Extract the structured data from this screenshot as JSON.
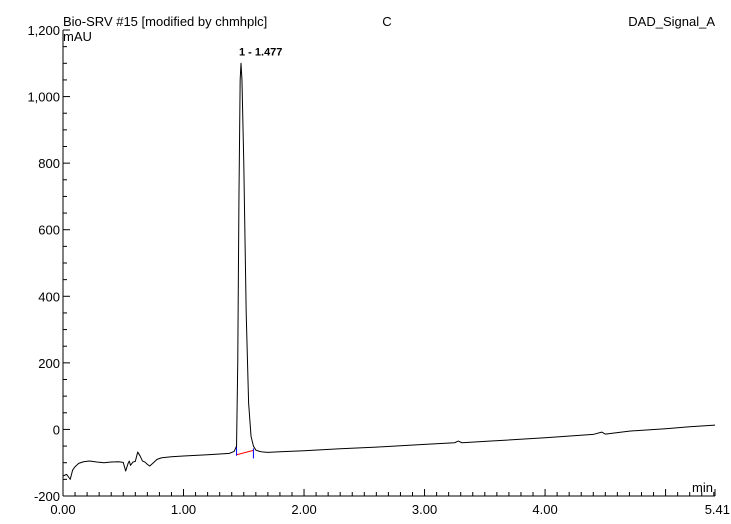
{
  "chart_data": {
    "type": "line",
    "header": {
      "left": "Bio-SRV #15 [modified by chmhplc]",
      "center": "C",
      "right": "DAD_Signal_A"
    },
    "title": "",
    "xlabel": "min",
    "ylabel": "mAU",
    "xlim": [
      0,
      5.41
    ],
    "ylim": [
      -200,
      1200
    ],
    "x_ticks": [
      0.0,
      1.0,
      2.0,
      3.0,
      4.0,
      5.41
    ],
    "x_tick_labels": [
      "0.00",
      "1.00",
      "2.00",
      "3.00",
      "4.00",
      "5.41"
    ],
    "y_ticks": [
      -200,
      0,
      200,
      400,
      600,
      800,
      1000,
      1200
    ],
    "y_tick_labels": [
      "-200",
      "0",
      "200",
      "400",
      "600",
      "800",
      "1,000",
      "1,200"
    ],
    "grid": false,
    "series": [
      {
        "color": "#000000",
        "x": [
          0.0,
          0.03,
          0.06,
          0.08,
          0.1,
          0.13,
          0.17,
          0.22,
          0.28,
          0.34,
          0.4,
          0.46,
          0.5,
          0.52,
          0.54,
          0.55,
          0.56,
          0.58,
          0.6,
          0.62,
          0.64,
          0.66,
          0.68,
          0.7,
          0.72,
          0.75,
          0.78,
          0.82,
          0.9,
          1.0,
          1.1,
          1.2,
          1.3,
          1.38,
          1.42,
          1.44,
          1.45,
          1.46,
          1.47,
          1.477,
          1.485,
          1.5,
          1.52,
          1.54,
          1.56,
          1.58,
          1.6,
          1.63,
          1.66,
          1.7,
          1.8,
          2.0,
          2.3,
          2.6,
          3.0,
          3.25,
          3.28,
          3.31,
          3.5,
          4.0,
          4.4,
          4.47,
          4.5,
          4.7,
          5.0,
          5.2,
          5.41
        ],
        "y": [
          -140,
          -135,
          -150,
          -122,
          -112,
          -102,
          -97,
          -95,
          -98,
          -100,
          -98,
          -97,
          -99,
          -125,
          -102,
          -95,
          -108,
          -98,
          -96,
          -68,
          -80,
          -95,
          -98,
          -105,
          -110,
          -100,
          -90,
          -85,
          -82,
          -80,
          -78,
          -76,
          -74,
          -72,
          -66,
          -50,
          200,
          700,
          1050,
          1100,
          1050,
          800,
          350,
          80,
          -20,
          -50,
          -62,
          -66,
          -68,
          -69,
          -67,
          -64,
          -58,
          -53,
          -45,
          -40,
          -35,
          -40,
          -36,
          -25,
          -15,
          -8,
          -14,
          -5,
          2,
          8,
          13
        ]
      }
    ],
    "annotations": [
      {
        "text": "1 - 1.477",
        "x": 1.477,
        "y": 1100
      }
    ],
    "baseline": {
      "color": "#ff0000",
      "x": [
        1.44,
        1.58
      ],
      "y": [
        -76,
        -63
      ]
    },
    "markers": {
      "color": "#0000ff",
      "x": [
        1.44,
        1.58
      ],
      "y": [
        -64,
        -72
      ]
    }
  }
}
